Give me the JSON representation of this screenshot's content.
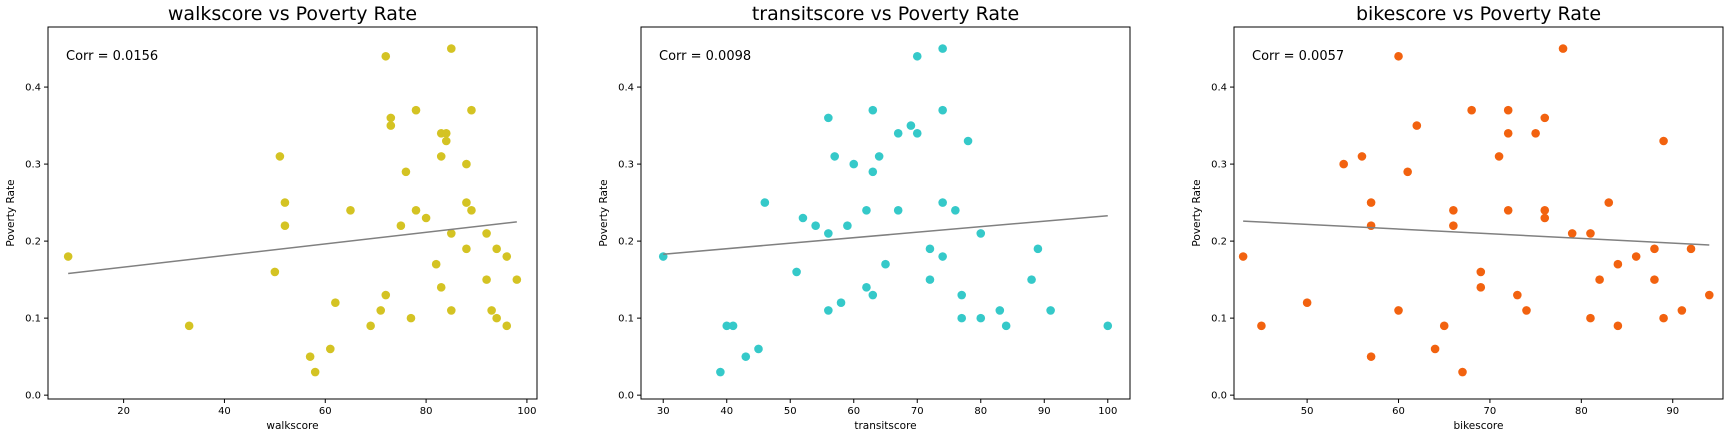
{
  "chart_data": [
    {
      "type": "scatter",
      "title": "walkscore vs Poverty Rate",
      "annotation": "Corr = 0.0156",
      "xlabel": "walkscore",
      "ylabel": "Poverty Rate",
      "color": "#d4c323",
      "xlim": [
        5,
        102
      ],
      "ylim": [
        -0.005,
        0.478
      ],
      "xticks": [
        20,
        40,
        60,
        80,
        100
      ],
      "yticks": [
        0.0,
        0.1,
        0.2,
        0.3,
        0.4
      ],
      "trendline": {
        "x": [
          9,
          98
        ],
        "y": [
          0.158,
          0.225
        ]
      },
      "points": [
        [
          9,
          0.18
        ],
        [
          33,
          0.09
        ],
        [
          50,
          0.16
        ],
        [
          51,
          0.31
        ],
        [
          52,
          0.25
        ],
        [
          52,
          0.22
        ],
        [
          57,
          0.05
        ],
        [
          58,
          0.03
        ],
        [
          61,
          0.06
        ],
        [
          62,
          0.12
        ],
        [
          65,
          0.24
        ],
        [
          69,
          0.09
        ],
        [
          71,
          0.11
        ],
        [
          72,
          0.13
        ],
        [
          72,
          0.44
        ],
        [
          73,
          0.36
        ],
        [
          73,
          0.35
        ],
        [
          75,
          0.22
        ],
        [
          76,
          0.29
        ],
        [
          77,
          0.1
        ],
        [
          78,
          0.37
        ],
        [
          78,
          0.24
        ],
        [
          80,
          0.23
        ],
        [
          82,
          0.17
        ],
        [
          83,
          0.34
        ],
        [
          83,
          0.31
        ],
        [
          83,
          0.14
        ],
        [
          84,
          0.34
        ],
        [
          84,
          0.33
        ],
        [
          85,
          0.45
        ],
        [
          85,
          0.21
        ],
        [
          85,
          0.11
        ],
        [
          88,
          0.3
        ],
        [
          88,
          0.25
        ],
        [
          88,
          0.19
        ],
        [
          89,
          0.37
        ],
        [
          89,
          0.24
        ],
        [
          92,
          0.21
        ],
        [
          92,
          0.15
        ],
        [
          93,
          0.11
        ],
        [
          94,
          0.19
        ],
        [
          94,
          0.1
        ],
        [
          96,
          0.18
        ],
        [
          96,
          0.09
        ],
        [
          98,
          0.15
        ]
      ]
    },
    {
      "type": "scatter",
      "title": "transitscore vs Poverty Rate",
      "annotation": "Corr = 0.0098",
      "xlabel": "transitscore",
      "ylabel": "Poverty Rate",
      "color": "#35c9c9",
      "xlim": [
        26.5,
        103.5
      ],
      "ylim": [
        -0.005,
        0.478
      ],
      "xticks": [
        30,
        40,
        50,
        60,
        70,
        80,
        90,
        100
      ],
      "yticks": [
        0.0,
        0.1,
        0.2,
        0.3,
        0.4
      ],
      "trendline": {
        "x": [
          30,
          100
        ],
        "y": [
          0.183,
          0.233
        ]
      },
      "points": [
        [
          30,
          0.18
        ],
        [
          39,
          0.03
        ],
        [
          40,
          0.09
        ],
        [
          41,
          0.09
        ],
        [
          43,
          0.05
        ],
        [
          45,
          0.06
        ],
        [
          46,
          0.25
        ],
        [
          51,
          0.16
        ],
        [
          52,
          0.23
        ],
        [
          54,
          0.22
        ],
        [
          56,
          0.36
        ],
        [
          56,
          0.21
        ],
        [
          56,
          0.11
        ],
        [
          57,
          0.31
        ],
        [
          58,
          0.12
        ],
        [
          59,
          0.22
        ],
        [
          60,
          0.3
        ],
        [
          62,
          0.24
        ],
        [
          62,
          0.14
        ],
        [
          63,
          0.37
        ],
        [
          63,
          0.29
        ],
        [
          63,
          0.13
        ],
        [
          64,
          0.31
        ],
        [
          65,
          0.17
        ],
        [
          67,
          0.34
        ],
        [
          67,
          0.24
        ],
        [
          69,
          0.35
        ],
        [
          70,
          0.44
        ],
        [
          70,
          0.34
        ],
        [
          72,
          0.19
        ],
        [
          72,
          0.15
        ],
        [
          74,
          0.45
        ],
        [
          74,
          0.37
        ],
        [
          74,
          0.25
        ],
        [
          74,
          0.18
        ],
        [
          76,
          0.24
        ],
        [
          77,
          0.13
        ],
        [
          77,
          0.1
        ],
        [
          78,
          0.33
        ],
        [
          80,
          0.21
        ],
        [
          80,
          0.1
        ],
        [
          83,
          0.11
        ],
        [
          84,
          0.09
        ],
        [
          88,
          0.15
        ],
        [
          89,
          0.19
        ],
        [
          91,
          0.11
        ],
        [
          100,
          0.09
        ]
      ]
    },
    {
      "type": "scatter",
      "title": "bikescore vs Poverty Rate",
      "annotation": "Corr = 0.0057",
      "xlabel": "bikescore",
      "ylabel": "Poverty Rate",
      "color": "#f2620f",
      "xlim": [
        42,
        95.5
      ],
      "ylim": [
        -0.005,
        0.478
      ],
      "xticks": [
        50,
        60,
        70,
        80,
        90
      ],
      "yticks": [
        0.0,
        0.1,
        0.2,
        0.3,
        0.4
      ],
      "trendline": {
        "x": [
          43,
          94
        ],
        "y": [
          0.226,
          0.195
        ]
      },
      "points": [
        [
          43,
          0.18
        ],
        [
          45,
          0.09
        ],
        [
          50,
          0.12
        ],
        [
          54,
          0.3
        ],
        [
          56,
          0.31
        ],
        [
          57,
          0.25
        ],
        [
          57,
          0.22
        ],
        [
          57,
          0.05
        ],
        [
          60,
          0.44
        ],
        [
          60,
          0.11
        ],
        [
          61,
          0.29
        ],
        [
          62,
          0.35
        ],
        [
          64,
          0.06
        ],
        [
          65,
          0.09
        ],
        [
          66,
          0.24
        ],
        [
          66,
          0.22
        ],
        [
          67,
          0.03
        ],
        [
          68,
          0.37
        ],
        [
          69,
          0.16
        ],
        [
          69,
          0.14
        ],
        [
          71,
          0.31
        ],
        [
          72,
          0.37
        ],
        [
          72,
          0.34
        ],
        [
          72,
          0.24
        ],
        [
          73,
          0.13
        ],
        [
          74,
          0.11
        ],
        [
          75,
          0.34
        ],
        [
          76,
          0.36
        ],
        [
          76,
          0.24
        ],
        [
          76,
          0.23
        ],
        [
          78,
          0.45
        ],
        [
          79,
          0.21
        ],
        [
          81,
          0.21
        ],
        [
          81,
          0.1
        ],
        [
          82,
          0.15
        ],
        [
          83,
          0.25
        ],
        [
          84,
          0.17
        ],
        [
          84,
          0.09
        ],
        [
          86,
          0.18
        ],
        [
          88,
          0.19
        ],
        [
          88,
          0.15
        ],
        [
          89,
          0.33
        ],
        [
          89,
          0.1
        ],
        [
          91,
          0.11
        ],
        [
          92,
          0.19
        ],
        [
          94,
          0.13
        ]
      ]
    }
  ]
}
